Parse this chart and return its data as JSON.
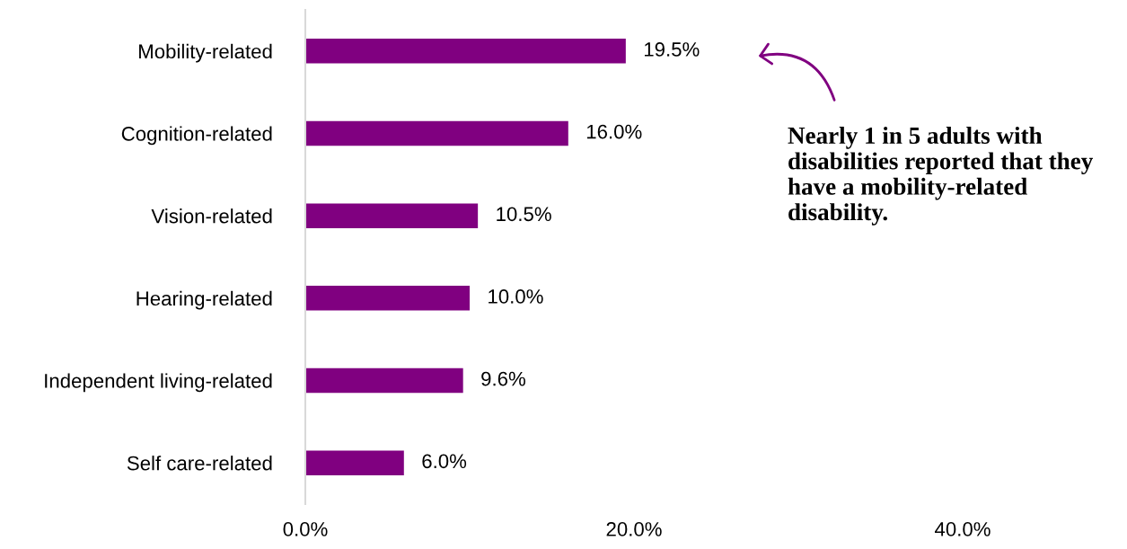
{
  "chart_data": {
    "type": "bar",
    "orientation": "horizontal",
    "categories": [
      "Mobility-related",
      "Cognition-related",
      "Vision-related",
      "Hearing-related",
      "Independent living-related",
      "Self care-related"
    ],
    "series": [
      {
        "color": "#800080",
        "values": [
          19.5,
          16.0,
          10.5,
          10.0,
          9.6,
          6.0
        ]
      }
    ],
    "value_labels": [
      "19.5%",
      "16.0%",
      "10.5%",
      "10.0%",
      "9.6%",
      "6.0%"
    ],
    "xlim": [
      0,
      40
    ],
    "xticks": [
      {
        "value": 0,
        "label": "0.0%"
      },
      {
        "value": 20,
        "label": "20.0%"
      },
      {
        "value": 40,
        "label": "40.0%"
      }
    ],
    "grid": false,
    "annotations": [
      "Nearly 1 in 5 adults with disabilities reported that they have a mobility-related disability."
    ]
  }
}
